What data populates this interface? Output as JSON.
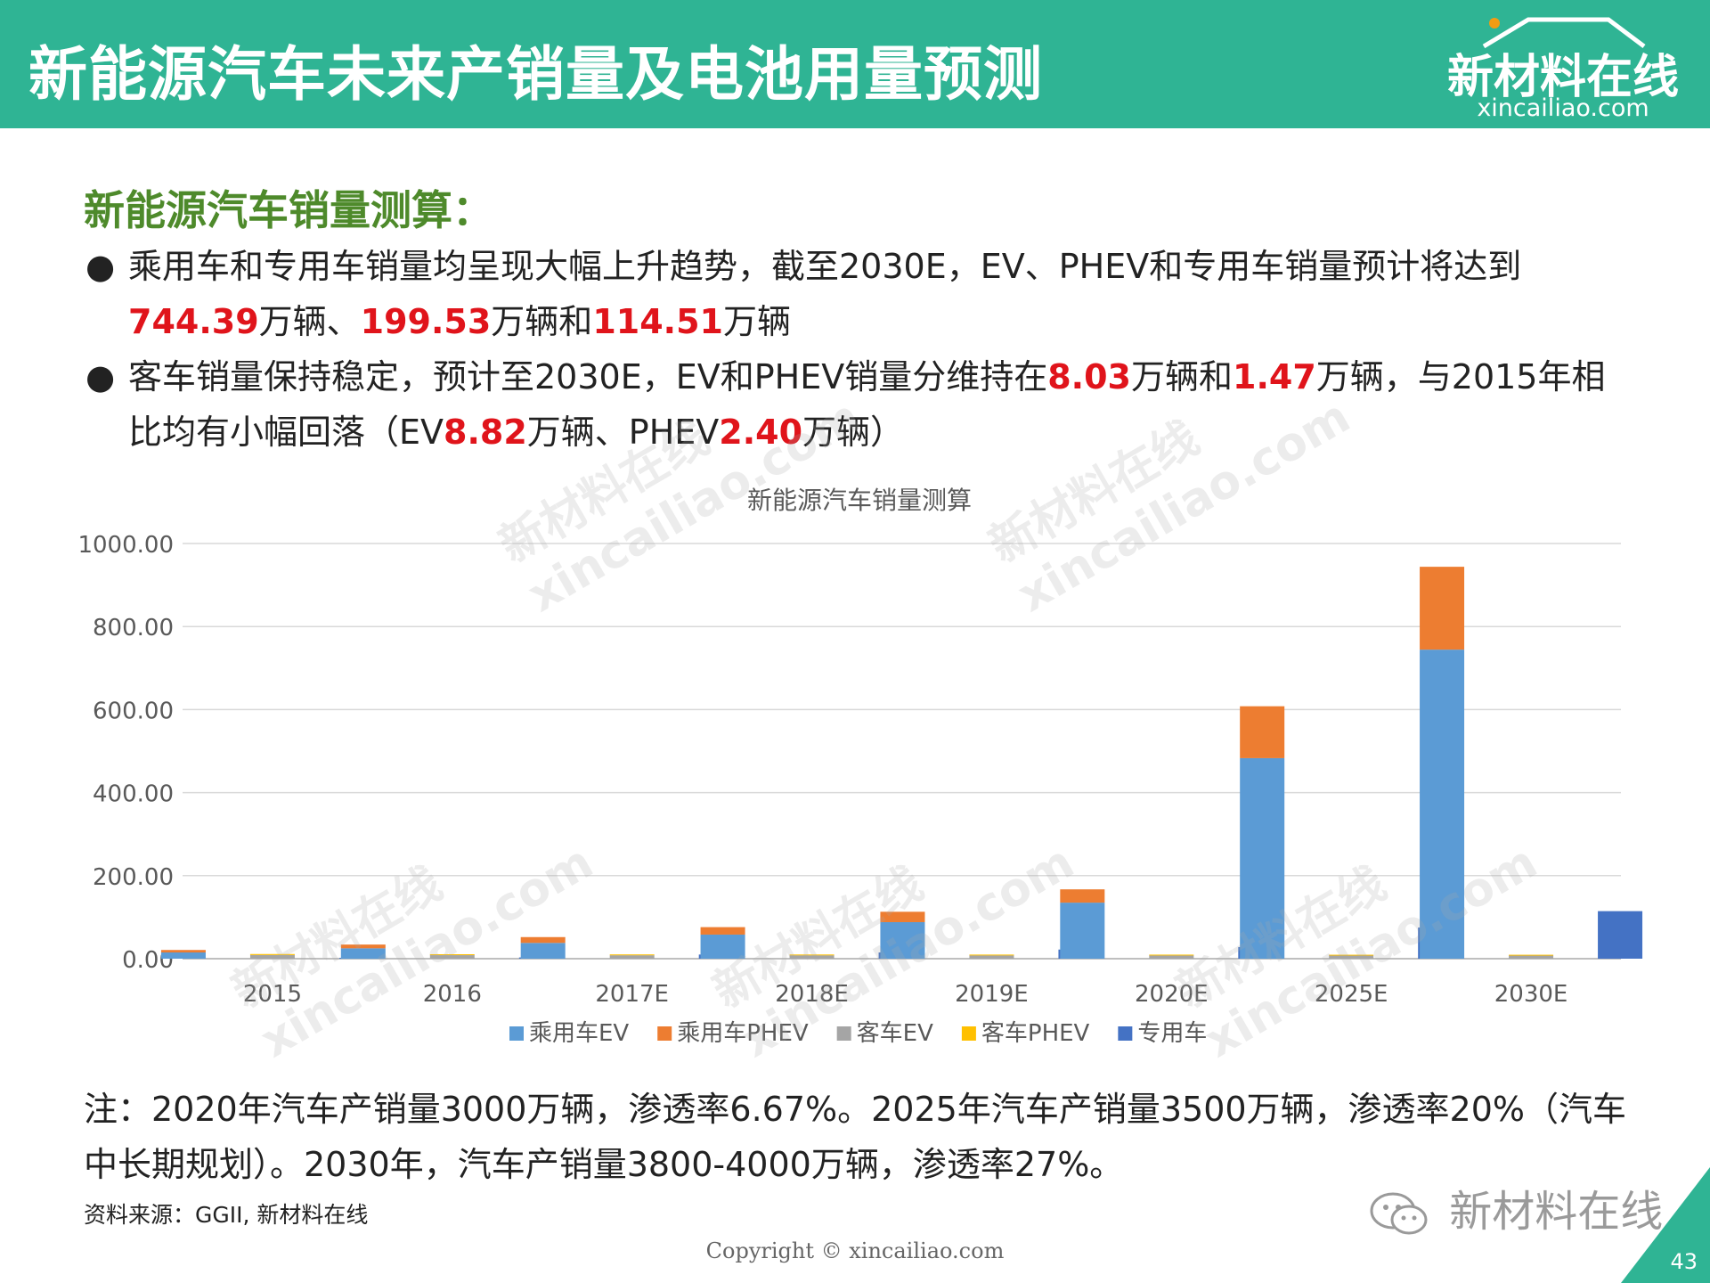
{
  "header": {
    "title": "新能源汽车未来产销量及电池用量预测",
    "logo_cn": "新材料在线",
    "logo_en": "xincailiao.com"
  },
  "section_title": "新能源汽车销量测算：",
  "bullets": [
    {
      "parts": [
        {
          "text": "乘用车和专用车销量均呈现大幅上升趋势，截至2030E，EV、PHEV和专用车销量预计将达到",
          "hl": false
        },
        {
          "text": "744.39",
          "hl": true
        },
        {
          "text": "万辆、",
          "hl": false
        },
        {
          "text": "199.53",
          "hl": true
        },
        {
          "text": "万辆和",
          "hl": false
        },
        {
          "text": "114.51",
          "hl": true
        },
        {
          "text": "万辆",
          "hl": false
        }
      ]
    },
    {
      "parts": [
        {
          "text": "客车销量保持稳定，预计至2030E，EV和PHEV销量分维持在",
          "hl": false
        },
        {
          "text": "8.03",
          "hl": true
        },
        {
          "text": "万辆和",
          "hl": false
        },
        {
          "text": "1.47",
          "hl": true
        },
        {
          "text": "万辆，与2015年相比均有小幅回落（EV",
          "hl": false
        },
        {
          "text": "8.82",
          "hl": true
        },
        {
          "text": "万辆、PHEV",
          "hl": false
        },
        {
          "text": "2.40",
          "hl": true
        },
        {
          "text": "万辆）",
          "hl": false
        }
      ]
    }
  ],
  "chart_data": {
    "type": "bar",
    "title": "新能源汽车销量测算",
    "categories": [
      "2015",
      "2016",
      "2017E",
      "2018E",
      "2019E",
      "2020E",
      "2025E",
      "2030E"
    ],
    "stack_groups": [
      [
        "乘用车EV",
        "乘用车PHEV"
      ],
      [
        "客车EV",
        "客车PHEV"
      ],
      [
        "专用车"
      ]
    ],
    "series": [
      {
        "name": "乘用车EV",
        "color": "#5b9bd5",
        "values": [
          15,
          25,
          38,
          58,
          88,
          135,
          483,
          744.39
        ]
      },
      {
        "name": "乘用车PHEV",
        "color": "#ed7d31",
        "values": [
          6,
          9,
          14,
          18,
          25,
          32,
          125,
          199.53
        ]
      },
      {
        "name": "客车EV",
        "color": "#a5a5a5",
        "values": [
          8.82,
          8.5,
          8.3,
          8.2,
          8.1,
          8.1,
          8.05,
          8.03
        ]
      },
      {
        "name": "客车PHEV",
        "color": "#ffc000",
        "values": [
          2.4,
          2.2,
          2.0,
          1.9,
          1.8,
          1.7,
          1.5,
          1.47
        ]
      },
      {
        "name": "专用车",
        "color": "#4472c4",
        "values": [
          2,
          3,
          10,
          15,
          22,
          28,
          75,
          114.51
        ]
      }
    ],
    "ylim": [
      0,
      1000
    ],
    "yticks": [
      "0.00",
      "200.00",
      "400.00",
      "600.00",
      "800.00",
      "1000.00"
    ],
    "ytick_values": [
      0,
      200,
      400,
      600,
      800,
      1000
    ],
    "grid": true,
    "legend": "bottom"
  },
  "note": "注：2020年汽车产销量3000万辆，渗透率6.67%。2025年汽车产销量3500万辆，渗透率20%（汽车中长期规划）。2030年，汽车产销量3800-4000万辆，渗透率27%。",
  "source": "资料来源：GGII, 新材料在线",
  "copyright": "Copyright © xincailiao.com",
  "wechat_label": "新材料在线",
  "page_number": "43",
  "watermark_cn": "新材料在线",
  "watermark_en": "xincailiao.com"
}
